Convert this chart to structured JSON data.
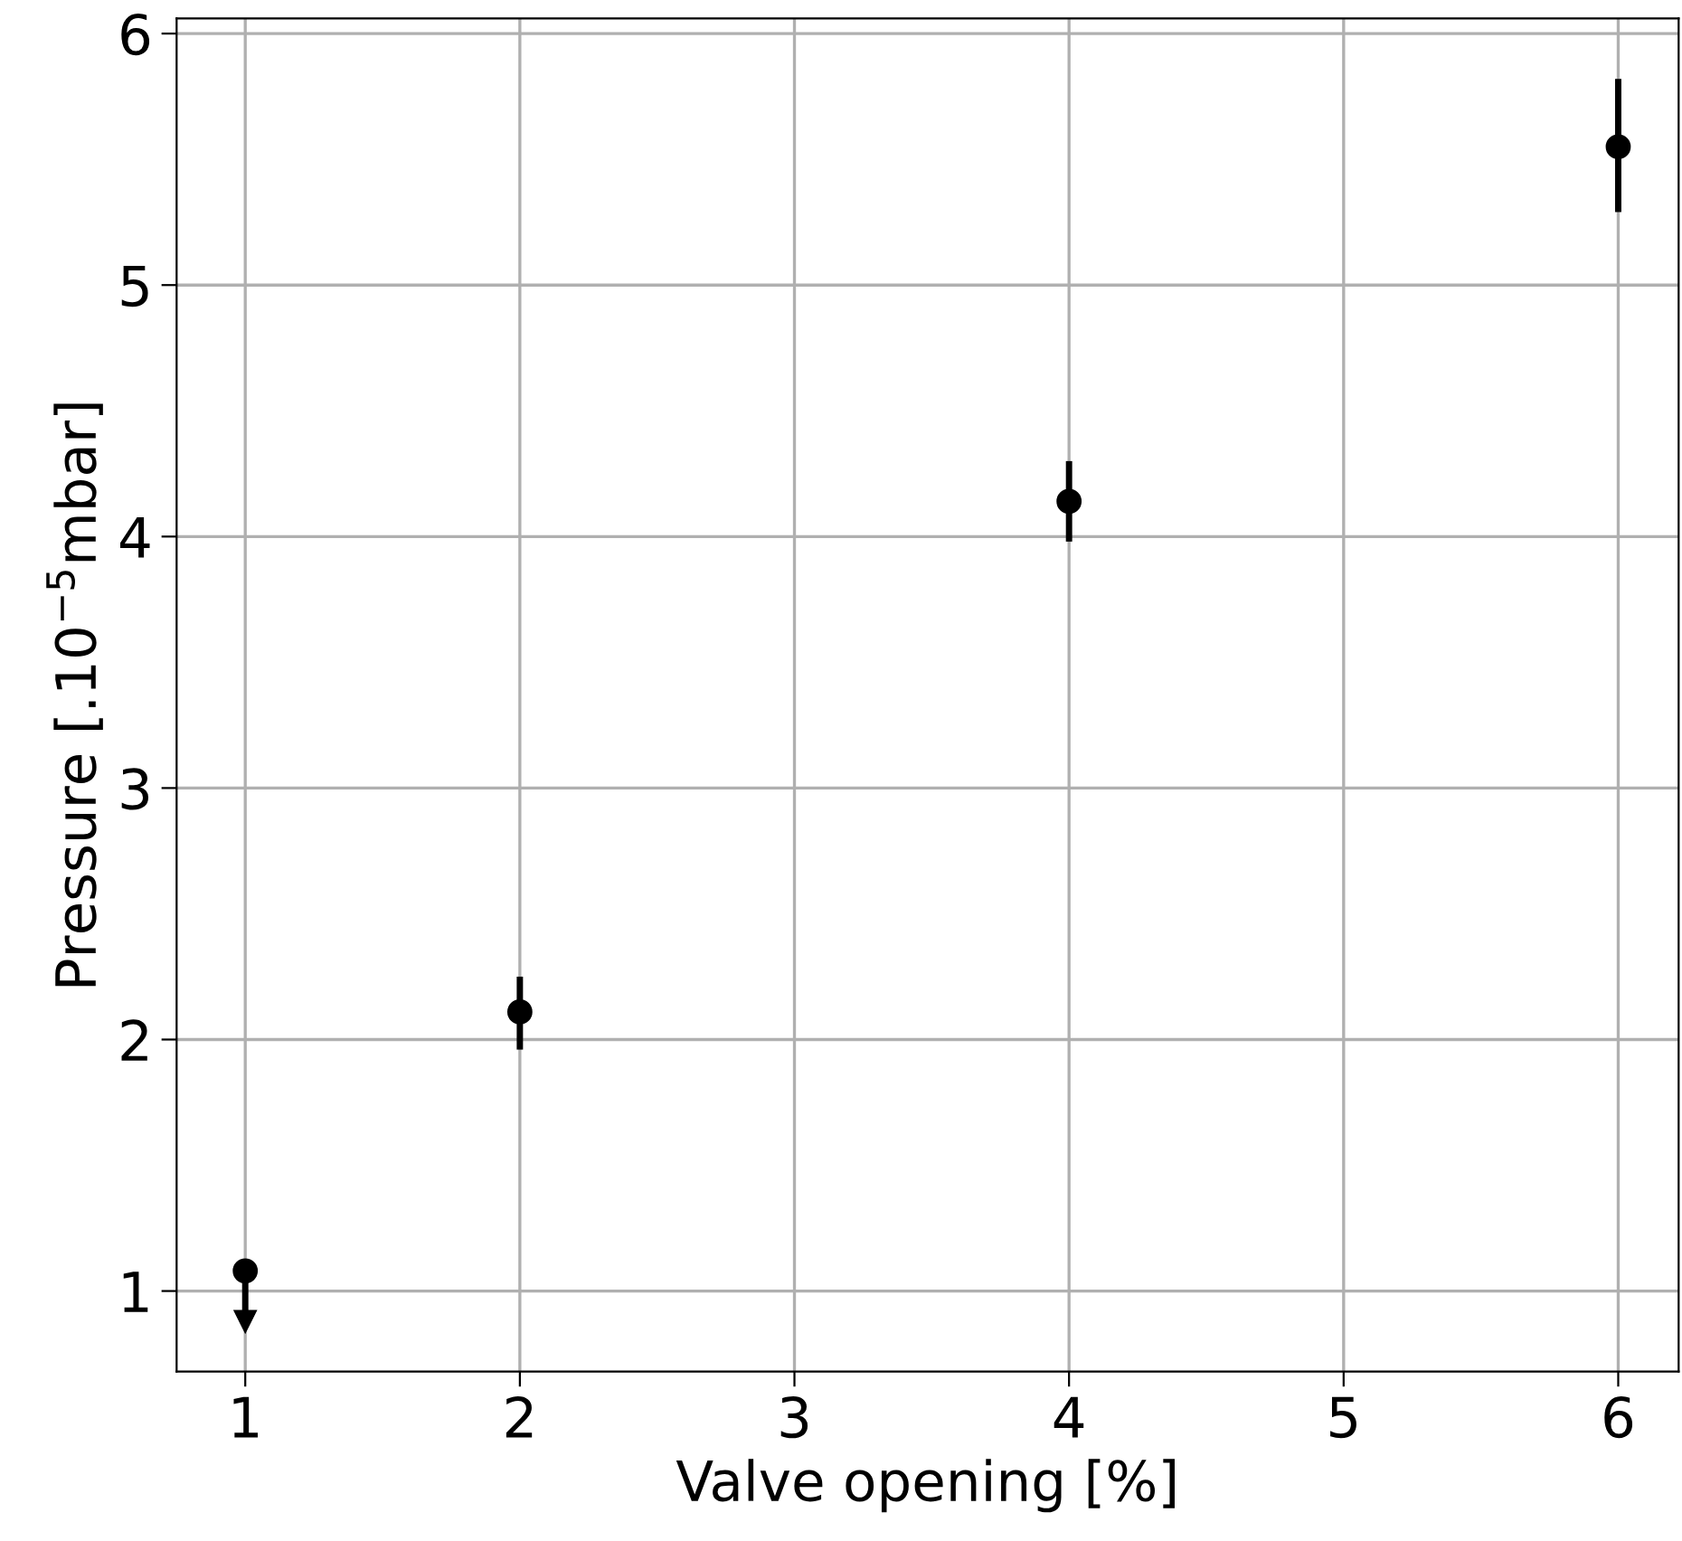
{
  "chart_data": {
    "type": "scatter",
    "xlabel": "Valve opening [%]",
    "ylabel": "Pressure [.10$^{−5}$mbar]",
    "x": [
      1,
      2,
      4,
      6
    ],
    "series": [
      {
        "color": "#000000",
        "values": [
          1.08,
          2.11,
          4.14,
          5.55
        ],
        "errors": [
          [
            0.88,
            1.08
          ],
          [
            1.96,
            2.25
          ],
          [
            3.98,
            4.3
          ],
          [
            5.29,
            5.82
          ]
        ]
      }
    ],
    "xlim": [
      0.75,
      6.22
    ],
    "ylim": [
      0.68,
      6.06
    ],
    "xticks": [
      1,
      2,
      3,
      4,
      5,
      6
    ],
    "yticks": [
      1,
      2,
      3,
      4,
      5,
      6
    ],
    "grid": true,
    "marker": "circle"
  }
}
